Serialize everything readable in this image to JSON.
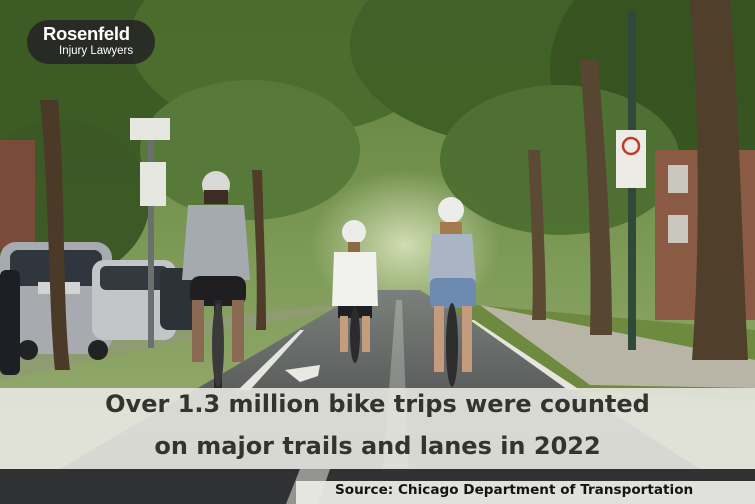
{
  "logo": {
    "name": "Rosenfeld",
    "subtitle": "Injury Lawyers"
  },
  "headline": {
    "line1": "Over 1.3 million bike trips were counted",
    "line2": "on major trails and lanes in 2022"
  },
  "source": "Source: Chicago Department of Transportation",
  "colors": {
    "caption_band": "#e8e8e2",
    "headline_text": "#33342e",
    "source_text": "#141414",
    "logo_bg": "#262626",
    "foliage": "#4f7a2e",
    "road": "#3d3f40"
  }
}
